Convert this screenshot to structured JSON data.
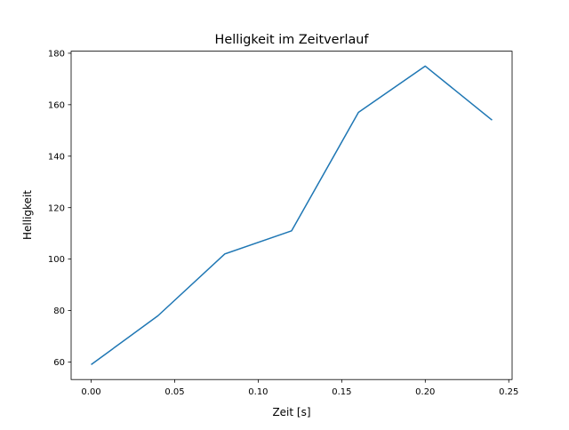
{
  "chart_data": {
    "type": "line",
    "title": "Helligkeit im Zeitverlauf",
    "xlabel": "Zeit [s]",
    "ylabel": "Helligkeit",
    "xlim": [
      -0.012,
      0.252
    ],
    "ylim": [
      53.2,
      180.8
    ],
    "xticks": [
      0.0,
      0.05,
      0.1,
      0.15,
      0.2,
      0.25
    ],
    "xtick_labels": [
      "0.00",
      "0.05",
      "0.10",
      "0.15",
      "0.20",
      "0.25"
    ],
    "yticks": [
      60,
      80,
      100,
      120,
      140,
      160,
      180
    ],
    "ytick_labels": [
      "60",
      "80",
      "100",
      "120",
      "140",
      "160",
      "180"
    ],
    "grid": false,
    "series": [
      {
        "name": "Helligkeit",
        "color": "#1f77b4",
        "x": [
          0.0,
          0.04,
          0.08,
          0.12,
          0.16,
          0.2,
          0.24
        ],
        "y": [
          59,
          78,
          102,
          111,
          157,
          175,
          154
        ]
      }
    ]
  }
}
